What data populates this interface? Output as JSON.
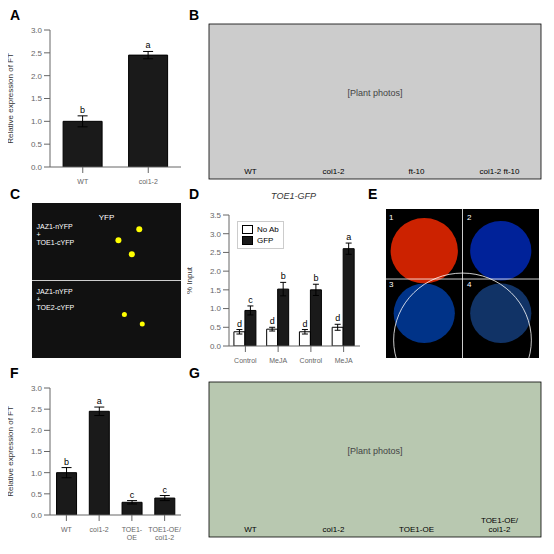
{
  "chart_data": [
    {
      "type": "bar",
      "panel_label": "A",
      "categories": [
        "WT",
        "coi1-2"
      ],
      "values": [
        1.0,
        2.45
      ],
      "errors": [
        0.12,
        0.08
      ],
      "annotations": [
        "b",
        "a"
      ],
      "ylabel": "Relative expression of FT",
      "ylim": [
        0,
        3.0
      ],
      "yticks": [
        {
          "value": 0,
          "label": "0.0"
        },
        0.5,
        {
          "value": 1.0,
          "label": "1.0"
        },
        1.5,
        {
          "value": 2.0,
          "label": "2.0"
        },
        2.5,
        {
          "value": 3.0,
          "label": "3.0"
        }
      ],
      "color": "#1a1a1a",
      "grid": false
    },
    {
      "type": "photo",
      "panel_label": "B",
      "color": "#cccccc",
      "annotations": [
        "[Plant photos]",
        "WT",
        "coi1-2",
        "ft-10",
        "coi1-2 ft-10"
      ]
    },
    {
      "type": "microscopy",
      "panel_label": "C",
      "color": "#111111",
      "annotations": [
        "YFP",
        "JAZ1-nYFP\n+\nTOE1-cYFP",
        "JAZ1-nYFP\n+\nTOE2-cYFP"
      ]
    },
    {
      "type": "bar",
      "panel_label": "D",
      "title": "TOE1-GFP",
      "categories": [
        "Control",
        "MeJA",
        "Control",
        "MeJA"
      ],
      "series": [
        {
          "name": "No Ab",
          "color": "#ffffff",
          "values": [
            0.38,
            0.45,
            0.38,
            0.5
          ],
          "errors": [
            0.06,
            0.05,
            0.06,
            0.08
          ],
          "annotations": [
            "d",
            "d",
            "d",
            "d"
          ]
        },
        {
          "name": "GFP",
          "color": "#1a1a1a",
          "values": [
            0.95,
            1.52,
            1.5,
            2.6
          ],
          "errors": [
            0.12,
            0.18,
            0.15,
            0.15
          ],
          "annotations": [
            "c",
            "b",
            "b",
            "a"
          ]
        }
      ],
      "ylabel": "% Input",
      "ylim": [
        0,
        3.5
      ],
      "yticks": [
        {
          "value": 0,
          "label": "0.0"
        },
        0.5,
        {
          "value": 1.0,
          "label": "1.0"
        },
        1.5,
        {
          "value": 2.0,
          "label": "2.0"
        },
        2.5,
        {
          "value": 3.0,
          "label": "3.0"
        },
        3.5
      ],
      "legend": "upper left",
      "grid": false
    },
    {
      "type": "luminescence",
      "panel_label": "E",
      "color": "#000000",
      "colors": [
        "#cc2200",
        "#002299",
        "#003388",
        "#113366"
      ],
      "annotations": [
        "1",
        "2",
        "3",
        "4"
      ]
    },
    {
      "type": "bar",
      "panel_label": "F",
      "categories": [
        "WT",
        "coi1-2",
        "TOE1-OE",
        "TOE1-OE/coi1-2"
      ],
      "values": [
        1.0,
        2.45,
        0.3,
        0.4
      ],
      "errors": [
        0.12,
        0.1,
        0.04,
        0.06
      ],
      "annotations": [
        "b",
        "a",
        "c",
        "c"
      ],
      "ylabel": "Relative expression of FT",
      "ylim": [
        0,
        3.0
      ],
      "yticks": [
        {
          "value": 0,
          "label": "0.0"
        },
        0.5,
        {
          "value": 1.0,
          "label": "1.0"
        },
        1.5,
        {
          "value": 2.0,
          "label": "2.0"
        },
        2.5,
        {
          "value": 3.0,
          "label": "3.0"
        }
      ],
      "color": "#1a1a1a",
      "grid": false
    },
    {
      "type": "photo",
      "panel_label": "G",
      "color": "#b8c8b0",
      "annotations": [
        "[Plant photos]",
        "WT",
        "coi1-2",
        "TOE1-OE",
        "TOE1-OE/coi1-2"
      ]
    }
  ]
}
